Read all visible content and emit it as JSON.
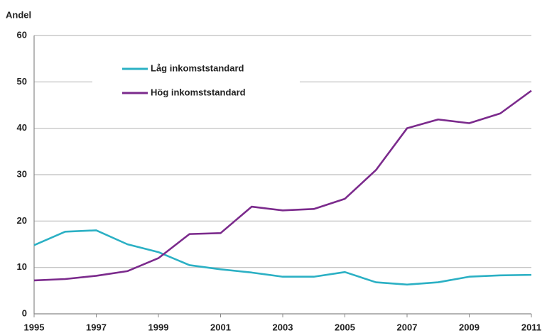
{
  "chart_data": {
    "type": "line",
    "ylabel": "Andel",
    "x": [
      1995,
      1996,
      1997,
      1998,
      1999,
      2000,
      2001,
      2002,
      2003,
      2004,
      2005,
      2006,
      2007,
      2008,
      2009,
      2010,
      2011
    ],
    "series": [
      {
        "name": "Låg inkomststandard",
        "color": "#2bb0c4",
        "values": [
          14.8,
          17.7,
          18.0,
          15.0,
          13.3,
          10.5,
          9.6,
          8.9,
          8.0,
          8.0,
          9.0,
          6.8,
          6.3,
          6.8,
          8.0,
          8.3,
          8.4
        ]
      },
      {
        "name": "Hög inkomststandard",
        "color": "#7b2a8c",
        "values": [
          7.2,
          7.5,
          8.2,
          9.2,
          12.0,
          17.2,
          17.4,
          23.1,
          22.3,
          22.6,
          24.8,
          31.0,
          40.0,
          41.9,
          41.1,
          43.2,
          48.1
        ]
      }
    ],
    "xlim": [
      1995,
      2011
    ],
    "xticks": [
      1995,
      1997,
      1999,
      2001,
      2003,
      2005,
      2007,
      2009,
      2011
    ],
    "ylim": [
      0,
      60
    ],
    "yticks": [
      0,
      10,
      20,
      30,
      40,
      50,
      60
    ],
    "grid": true,
    "legend": "top-left"
  }
}
